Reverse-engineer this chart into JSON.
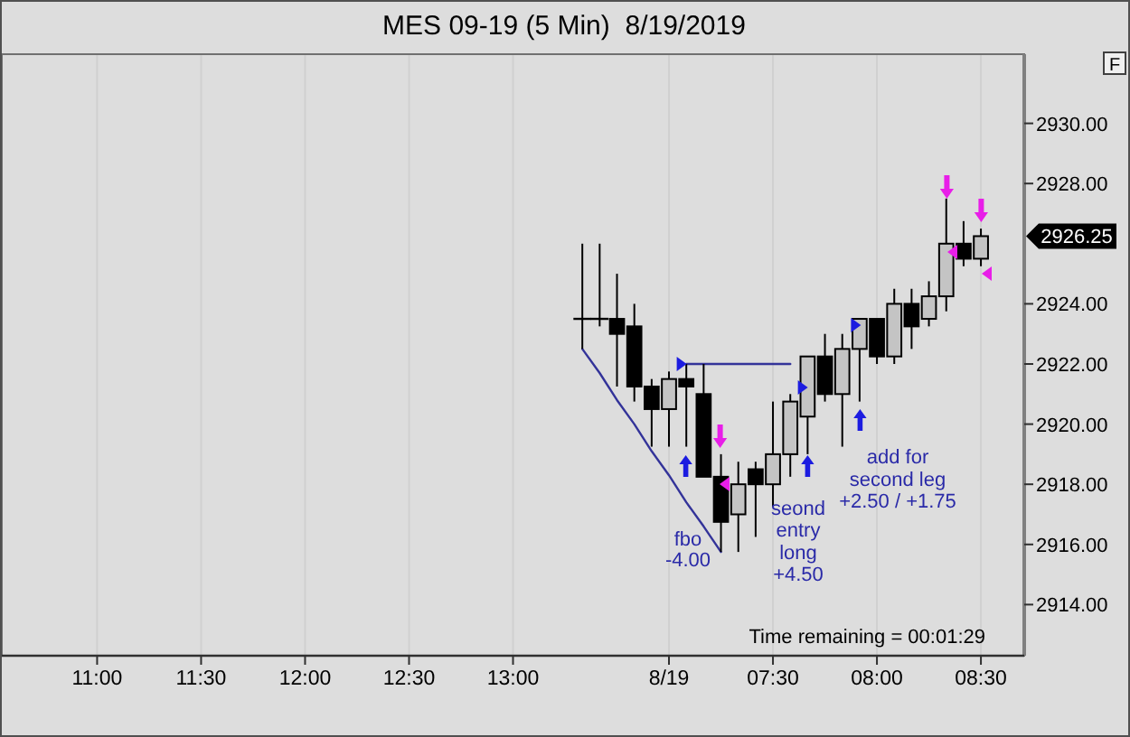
{
  "chart_data": {
    "type": "candlestick",
    "title": "MES 09-19 (5 Min)  8/19/2019",
    "categories": [
      null,
      null,
      null,
      null,
      null,
      "11:00",
      null,
      null,
      null,
      null,
      null,
      "11:30",
      null,
      null,
      null,
      null,
      null,
      "12:00",
      null,
      null,
      null,
      null,
      null,
      "12:30",
      null,
      null,
      null,
      null,
      null,
      "13:00",
      null,
      null,
      null,
      null,
      null,
      null,
      null,
      null,
      "8/19",
      null,
      null,
      null,
      null,
      null,
      "07:30",
      null,
      null,
      null,
      null,
      null,
      "08:00",
      null,
      null,
      null,
      null,
      null,
      "08:30",
      null,
      null
    ],
    "ohlc": [
      null,
      null,
      null,
      null,
      null,
      null,
      null,
      null,
      null,
      null,
      null,
      null,
      null,
      null,
      null,
      null,
      null,
      null,
      null,
      null,
      null,
      null,
      null,
      null,
      null,
      null,
      null,
      null,
      null,
      null,
      null,
      null,
      null,
      [
        2923.5,
        2926.0,
        2922.5,
        2923.5
      ],
      [
        2923.5,
        2926.0,
        2923.25,
        2923.5
      ],
      [
        2923.5,
        2925.0,
        2921.25,
        2923.0
      ],
      [
        2923.25,
        2924.0,
        2920.75,
        2921.25
      ],
      [
        2921.25,
        2921.5,
        2919.25,
        2920.5
      ],
      [
        2920.5,
        2921.75,
        2919.25,
        2921.5
      ],
      [
        2921.5,
        2922.0,
        2919.25,
        2921.25
      ],
      [
        2921.0,
        2922.0,
        2918.25,
        2918.25
      ],
      [
        2918.25,
        2919.0,
        2915.75,
        2916.75
      ],
      [
        2917.0,
        2918.75,
        2915.75,
        2918.0
      ],
      [
        2918.5,
        2918.75,
        2916.25,
        2918.0
      ],
      [
        2918.0,
        2920.75,
        2917.25,
        2919.0
      ],
      [
        2919.0,
        2921.0,
        2918.25,
        2920.75
      ],
      [
        2920.25,
        2922.25,
        2919.0,
        2922.25
      ],
      [
        2922.25,
        2923.0,
        2920.75,
        2921.0
      ],
      [
        2921.0,
        2923.0,
        2919.25,
        2922.5
      ],
      [
        2922.5,
        2923.5,
        2920.75,
        2923.5
      ],
      [
        2923.5,
        2923.5,
        2922.0,
        2922.25
      ],
      [
        2922.25,
        2924.5,
        2922.0,
        2924.0
      ],
      [
        2924.0,
        2924.5,
        2922.5,
        2923.25
      ],
      [
        2923.5,
        2924.75,
        2923.25,
        2924.25
      ],
      [
        2924.25,
        2927.5,
        2923.75,
        2926.0
      ],
      [
        2926.0,
        2926.75,
        2925.25,
        2925.5
      ],
      [
        2925.5,
        2926.5,
        2925.25,
        2926.25
      ],
      null,
      null
    ],
    "series": [
      {
        "type": "line",
        "color": "#333399",
        "values": [
          null,
          null,
          null,
          null,
          null,
          null,
          null,
          null,
          null,
          null,
          null,
          null,
          null,
          null,
          null,
          null,
          null,
          null,
          null,
          null,
          null,
          null,
          null,
          null,
          null,
          null,
          null,
          null,
          null,
          null,
          null,
          null,
          null,
          2922.5,
          2921.7,
          2920.8,
          2920.0,
          2919.1,
          2918.3,
          2917.4,
          2916.6,
          2915.75,
          null,
          null,
          null,
          null,
          null,
          null,
          null,
          null,
          null,
          null,
          null,
          null,
          null,
          null,
          null,
          null,
          null
        ]
      },
      {
        "type": "line",
        "color": "#333399",
        "values": [
          null,
          null,
          null,
          null,
          null,
          null,
          null,
          null,
          null,
          null,
          null,
          null,
          null,
          null,
          null,
          null,
          null,
          null,
          null,
          null,
          null,
          null,
          null,
          null,
          null,
          null,
          null,
          null,
          null,
          null,
          null,
          null,
          null,
          null,
          null,
          null,
          null,
          null,
          null,
          2922.0,
          2922.0,
          2922.0,
          2922.0,
          2922.0,
          2922.0,
          2922.0,
          null,
          null,
          null,
          null,
          null,
          null,
          null,
          null,
          null,
          null,
          null,
          null,
          null
        ]
      }
    ],
    "ylim": [
      2912.3,
      2932.3
    ],
    "yticks": [
      {
        "value": 2914,
        "label": "2914.00"
      },
      {
        "value": 2916,
        "label": "2916.00"
      },
      {
        "value": 2918,
        "label": "2918.00"
      },
      {
        "value": 2920,
        "label": "2920.00"
      },
      {
        "value": 2922,
        "label": "2922.00"
      },
      {
        "value": 2924,
        "label": "2924.00"
      },
      {
        "value": 2928,
        "label": "2928.00"
      },
      {
        "value": 2930,
        "label": "2930.00"
      }
    ],
    "grid": "x",
    "annotations": [
      "fbo\n-4.00",
      "seond\nentry\nlong\n+4.50",
      "add for\nsecond leg\n+2.50 / +1.75",
      "Time remaining = 00:01:29",
      "F",
      "2926.25"
    ]
  }
}
